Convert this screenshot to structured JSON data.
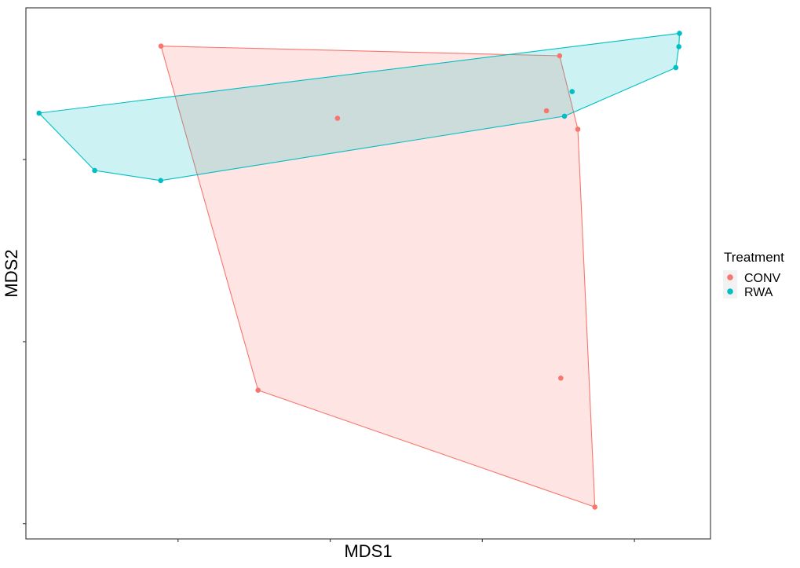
{
  "chart_data": {
    "type": "scatter",
    "title": "",
    "xlabel": "MDS1",
    "ylabel": "MDS2",
    "xlim": [
      -1.0,
      1.25
    ],
    "ylim": [
      -1.3,
      0.45
    ],
    "x_ticks": [
      -0.5,
      0.0,
      0.5,
      1.0
    ],
    "y_ticks": [
      -1.25,
      -0.65,
      -0.05
    ],
    "tick_labels_shown": false,
    "grid": false,
    "hulls": true,
    "legend": {
      "title": "Treatment",
      "position": "right"
    },
    "series": [
      {
        "name": "CONV",
        "color": "#F8766D",
        "points": [
          {
            "x": -0.556,
            "y": 0.324
          },
          {
            "x": 0.754,
            "y": 0.292
          },
          {
            "x": 0.024,
            "y": 0.086
          },
          {
            "x": 0.711,
            "y": 0.111
          },
          {
            "x": 0.814,
            "y": 0.05
          },
          {
            "x": 0.87,
            "y": -1.195
          },
          {
            "x": 0.758,
            "y": -0.77
          },
          {
            "x": -0.237,
            "y": -0.81
          }
        ],
        "hull": [
          0,
          1,
          4,
          5,
          7
        ]
      },
      {
        "name": "RWA",
        "color": "#00BFC4",
        "points": [
          {
            "x": 1.148,
            "y": 0.366
          },
          {
            "x": 1.146,
            "y": 0.322
          },
          {
            "x": 1.136,
            "y": 0.253
          },
          {
            "x": 0.795,
            "y": 0.174
          },
          {
            "x": 0.77,
            "y": 0.093
          },
          {
            "x": -0.957,
            "y": 0.103
          },
          {
            "x": -0.774,
            "y": -0.086
          },
          {
            "x": -0.557,
            "y": -0.119
          }
        ],
        "hull": [
          0,
          1,
          2,
          4,
          7,
          6,
          5
        ]
      }
    ]
  }
}
